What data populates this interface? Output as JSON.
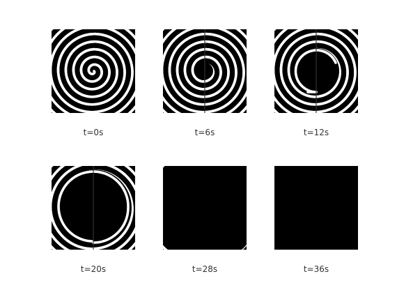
{
  "figure": {
    "panels": [
      {
        "caption": "t=0s"
      },
      {
        "caption": "t=6s"
      },
      {
        "caption": "t=12s"
      },
      {
        "caption": "t=20s"
      },
      {
        "caption": "t=28s"
      },
      {
        "caption": "t=36s"
      }
    ],
    "colors": {
      "background": "#000000",
      "stripe": "#ffffff",
      "caption_text": "#333333"
    }
  }
}
